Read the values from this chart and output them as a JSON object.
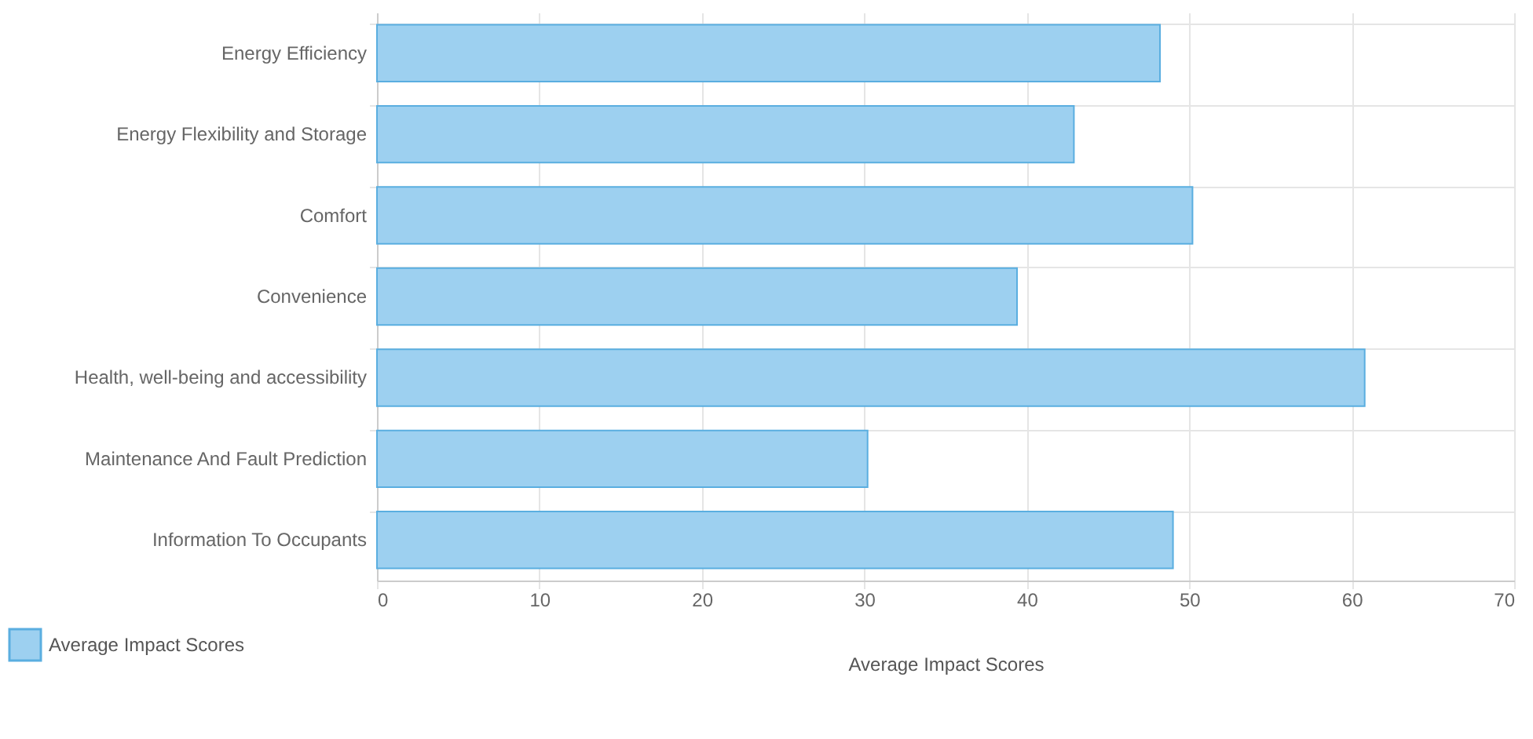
{
  "chart_data": {
    "type": "bar",
    "orientation": "horizontal",
    "xlabel": "Average Impact Scores",
    "categories": [
      "Energy Efficiency",
      "Energy Flexibility and Storage",
      "Comfort",
      "Convenience",
      "Health, well-being and accessibility",
      "Maintenance And Fault Prediction",
      "Information To Occupants"
    ],
    "series": [
      {
        "name": "Average Impact Scores",
        "color": "#9dd0f0",
        "values": [
          48.2,
          42.9,
          50.2,
          39.4,
          60.8,
          30.2,
          49.0
        ]
      }
    ],
    "xlim": [
      0,
      70
    ],
    "xticks": [
      0,
      10,
      20,
      30,
      40,
      50,
      60,
      70
    ],
    "grid": true,
    "legend": "bottom left"
  }
}
